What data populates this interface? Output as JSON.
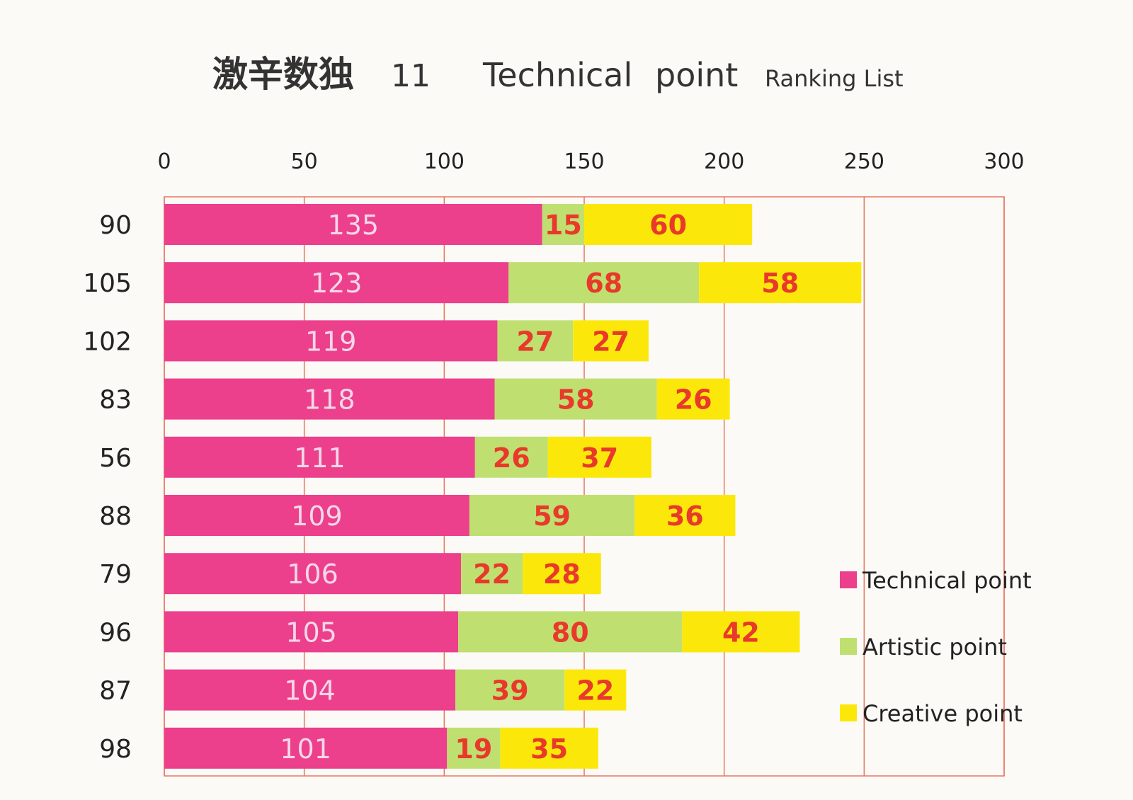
{
  "chart_data": {
    "type": "bar",
    "orientation": "horizontal",
    "stacked": true,
    "title_parts": [
      "激辛数独",
      "11",
      "Technical",
      "point",
      "Ranking List"
    ],
    "categories": [
      "90",
      "105",
      "102",
      "83",
      "56",
      "88",
      "79",
      "96",
      "87",
      "98"
    ],
    "series": [
      {
        "name": "Technical point",
        "color": "#ec3f8c",
        "label_color": "#f6d7e8",
        "values": [
          135,
          123,
          119,
          118,
          111,
          109,
          106,
          105,
          104,
          101
        ]
      },
      {
        "name": "Artistic point",
        "color": "#bfe071",
        "label_color": "#e8392b",
        "values": [
          15,
          68,
          27,
          58,
          26,
          59,
          22,
          80,
          39,
          19
        ]
      },
      {
        "name": "Creative point",
        "color": "#fbe80a",
        "label_color": "#e8392b",
        "values": [
          60,
          58,
          27,
          26,
          37,
          36,
          28,
          42,
          22,
          35
        ]
      }
    ],
    "xlim": [
      0,
      300
    ],
    "xticks": [
      0,
      50,
      100,
      150,
      200,
      250,
      300
    ],
    "xaxis_position": "top",
    "grid": true,
    "grid_color": "#e8765f",
    "legend_position": "bottom-right"
  }
}
